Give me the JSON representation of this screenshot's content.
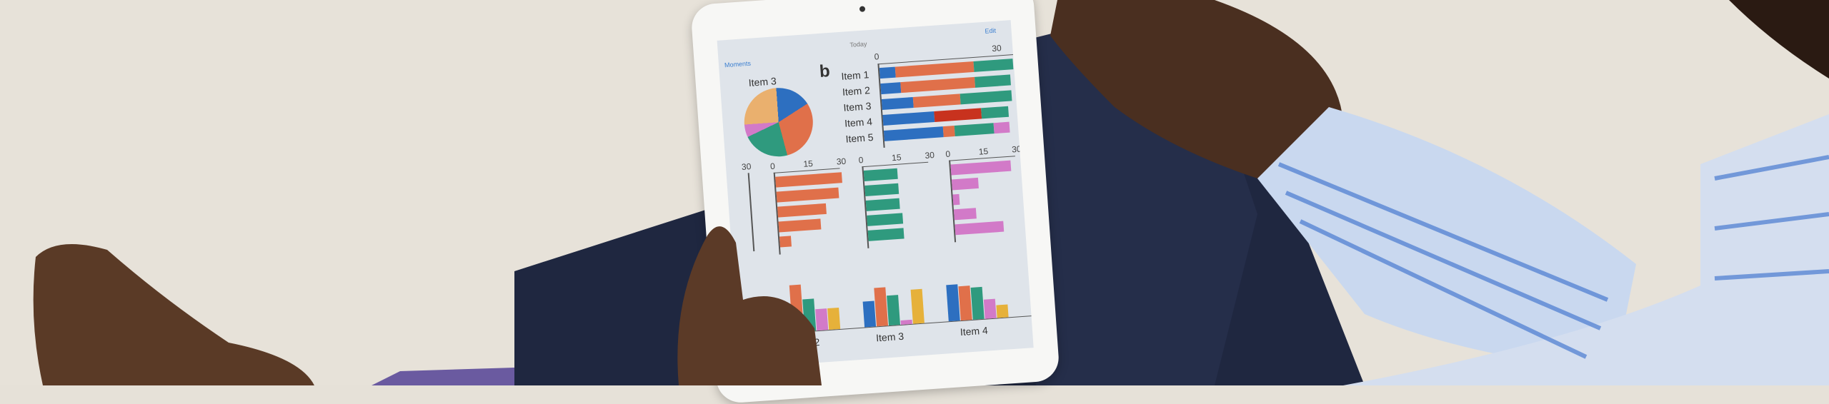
{
  "screen": {
    "back_label": "Moments",
    "title": "Today",
    "edit_label": "Edit",
    "heading": "b",
    "pie_title": "Item 3",
    "stacked_labels": [
      "Item 1",
      "Item 2",
      "Item 3",
      "Item 4",
      "Item 5"
    ],
    "stacked_ticks": [
      "0",
      "30"
    ],
    "small_ticks": [
      "0",
      "15",
      "30"
    ],
    "partial_tick": "30",
    "group_labels": [
      "Item 2",
      "Item 3",
      "Item 4"
    ]
  },
  "colors": {
    "blue": "#2d6fc0",
    "orange": "#e0704a",
    "green": "#2f9a7e",
    "pink": "#d27ac8",
    "yellow": "#e6b13a",
    "tan": "#eab06e",
    "red": "#c8321e"
  },
  "charts": {
    "pie": [
      {
        "color": "tan",
        "value": 25
      },
      {
        "color": "blue",
        "value": 17
      },
      {
        "color": "orange",
        "value": 30
      },
      {
        "color": "green",
        "value": 22
      },
      {
        "color": "pink",
        "value": 6
      }
    ],
    "stacked": [
      [
        [
          "blue",
          4
        ],
        [
          "orange",
          20
        ],
        [
          "green",
          10
        ]
      ],
      [
        [
          "blue",
          5
        ],
        [
          "orange",
          19
        ],
        [
          "green",
          9
        ]
      ],
      [
        [
          "blue",
          8
        ],
        [
          "orange",
          12
        ],
        [
          "green",
          13
        ]
      ],
      [
        [
          "blue",
          13
        ],
        [
          "red",
          12
        ],
        [
          "green",
          7
        ]
      ],
      [
        [
          "blue",
          15
        ],
        [
          "orange",
          3
        ],
        [
          "green",
          10
        ],
        [
          "pink",
          4
        ]
      ]
    ],
    "orange_bars": [
      30,
      28,
      22,
      19,
      5
    ],
    "green_bars": [
      15,
      15,
      15,
      16,
      16
    ],
    "pink_bars": [
      27,
      12,
      3,
      10,
      22
    ],
    "grouped": [
      [
        4,
        22,
        15,
        10,
        10
      ],
      [
        12,
        18,
        14,
        2,
        16
      ],
      [
        17,
        16,
        15,
        9,
        6
      ]
    ]
  }
}
